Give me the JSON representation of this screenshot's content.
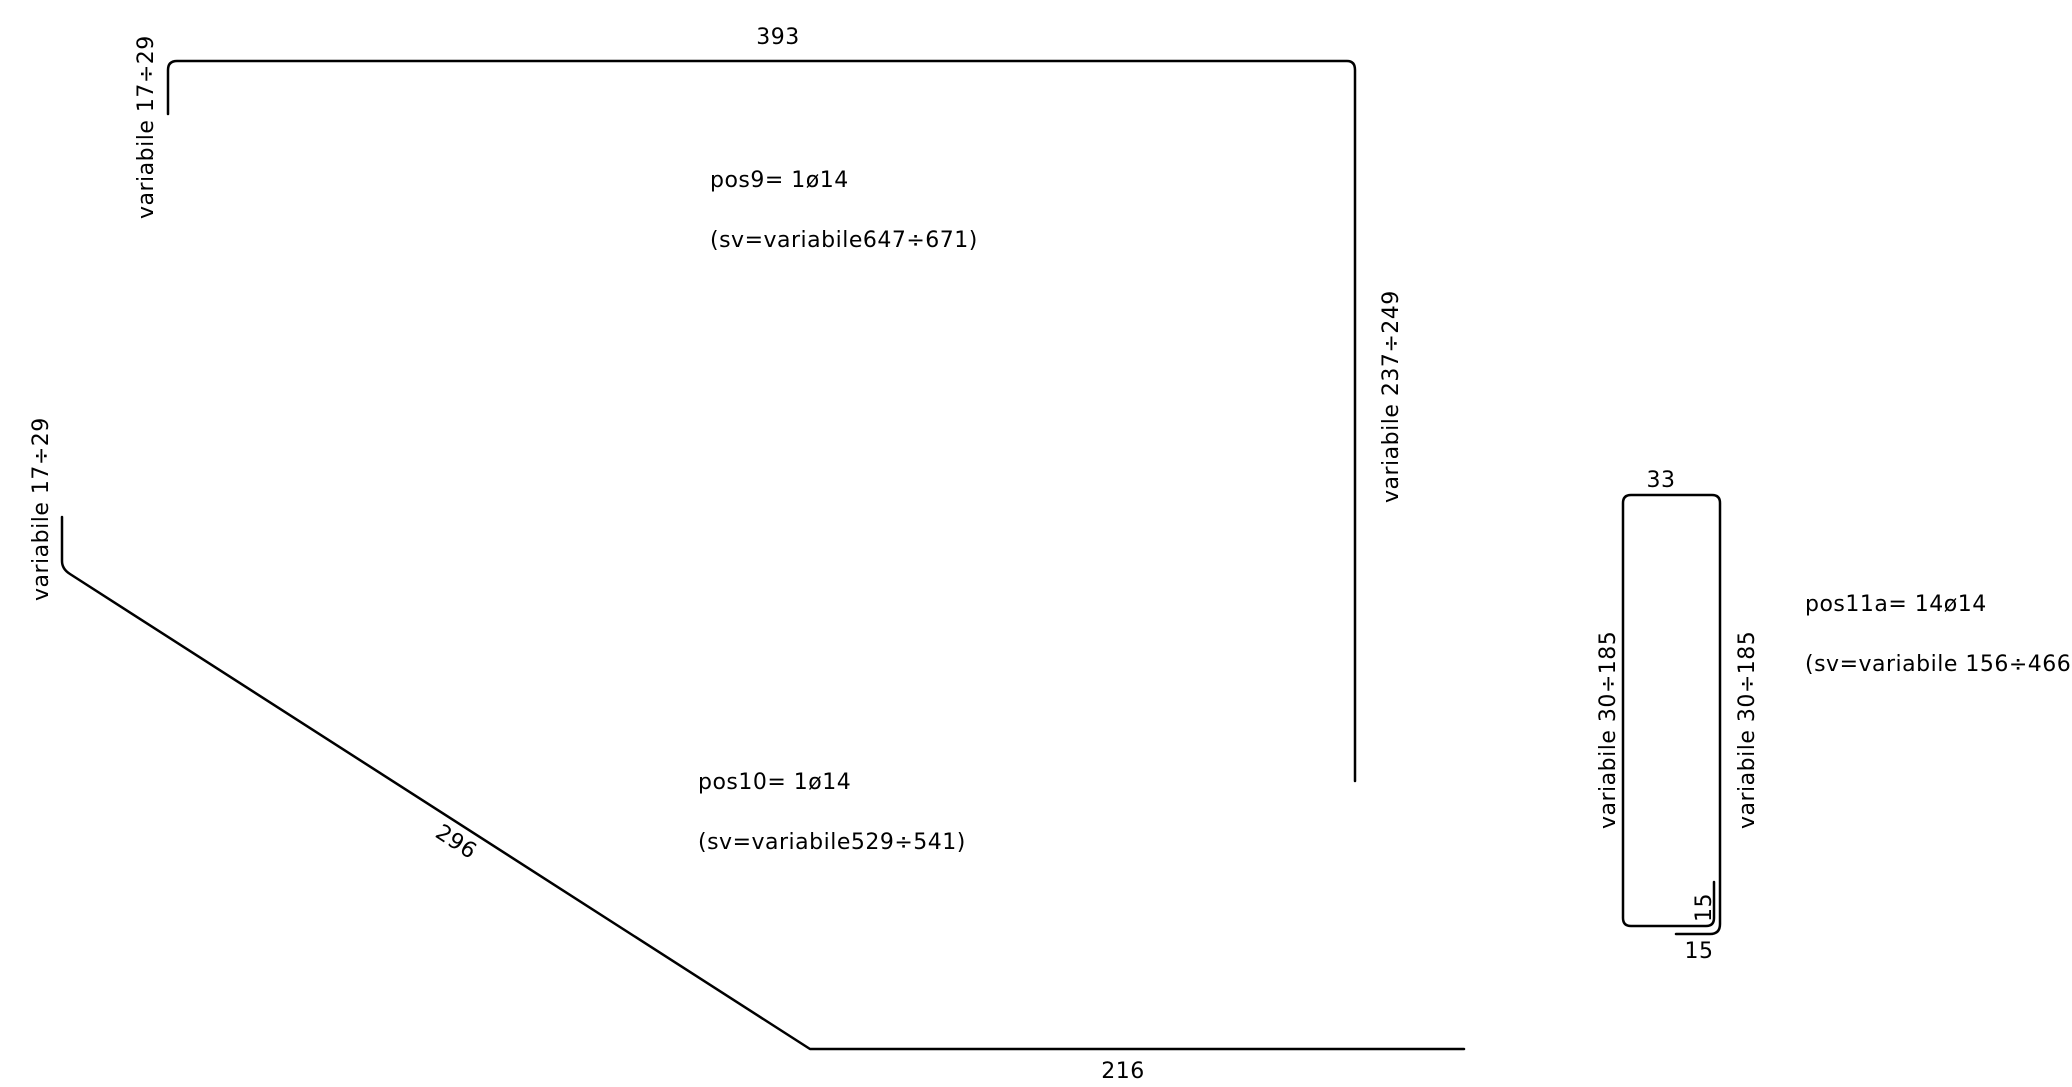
{
  "bars": {
    "pos9": {
      "label": "pos9=  1ø14",
      "sv": "(sv=variabile647÷671)",
      "dim_top": "393",
      "dim_left_hook": "variabile  17÷29",
      "dim_right": "variabile  237÷249"
    },
    "pos10": {
      "label": "pos10=  1ø14",
      "sv": "(sv=variabile529÷541)",
      "dim_diagonal": "296",
      "dim_bottom": "216",
      "dim_left_hook": "variabile  17÷29"
    },
    "pos11a": {
      "label": "pos11a=  14ø14",
      "sv": "(sv=variabile  156÷466)",
      "dim_top": "33",
      "dim_left": "variabile  30÷185",
      "dim_right": "variabile  30÷185",
      "dim_hook_vertical": "15",
      "dim_hook_horizontal": "15"
    }
  }
}
